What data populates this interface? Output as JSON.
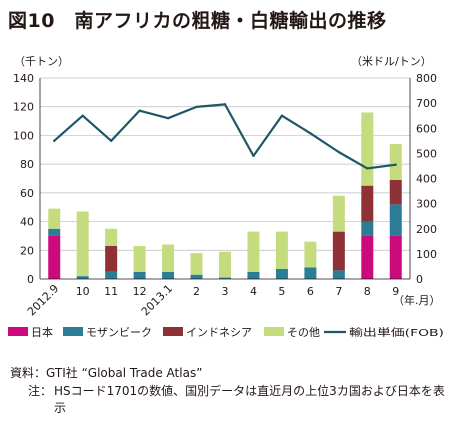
{
  "title": "図10　南アフリカの粗糖・白糖輸出の推移",
  "source_label": "資料：",
  "source_text": "GTI社 “Global Trade Atlas”",
  "note_label": "注：",
  "note_text": "HSコード1701の数値、国別データは直近月の上位3カ国および日本を表示",
  "chart_data": {
    "type": "bar",
    "stacked": true,
    "left_axis_unit": "（千トン）",
    "right_axis_unit": "（米ドル/トン）",
    "x_unit": "（年.月）",
    "ylim": [
      0,
      140
    ],
    "y2lim": [
      0,
      800
    ],
    "yticks": [
      0,
      20,
      40,
      60,
      80,
      100,
      120,
      140
    ],
    "y2ticks": [
      0,
      100,
      200,
      300,
      400,
      500,
      600,
      700,
      800
    ],
    "categories": [
      "2012.9",
      "10",
      "11",
      "12",
      "2013.1",
      "2",
      "3",
      "4",
      "5",
      "6",
      "7",
      "8",
      "9"
    ],
    "series": [
      {
        "name": "日本",
        "color": "#cc0a7e",
        "values": [
          30,
          0,
          0,
          0,
          0,
          0,
          0,
          0,
          0,
          0,
          0,
          30,
          30
        ]
      },
      {
        "name": "モザンビーク",
        "color": "#2b7c95",
        "values": [
          5,
          2,
          5,
          5,
          5,
          3,
          1,
          5,
          7,
          8,
          6,
          10,
          22
        ]
      },
      {
        "name": "インドネシア",
        "color": "#8f3238",
        "values": [
          0,
          0,
          18,
          0,
          0,
          0,
          0,
          0,
          0,
          0,
          27,
          25,
          17
        ]
      },
      {
        "name": "その他",
        "color": "#c4dc7e",
        "values": [
          14,
          45,
          12,
          18,
          19,
          15,
          18,
          28,
          26,
          18,
          25,
          51,
          25
        ]
      }
    ],
    "line": {
      "name": "輸出単価(FOB)",
      "color": "#1e5866",
      "values": [
        550,
        650,
        550,
        670,
        640,
        685,
        695,
        490,
        650,
        580,
        505,
        440,
        455
      ]
    }
  }
}
